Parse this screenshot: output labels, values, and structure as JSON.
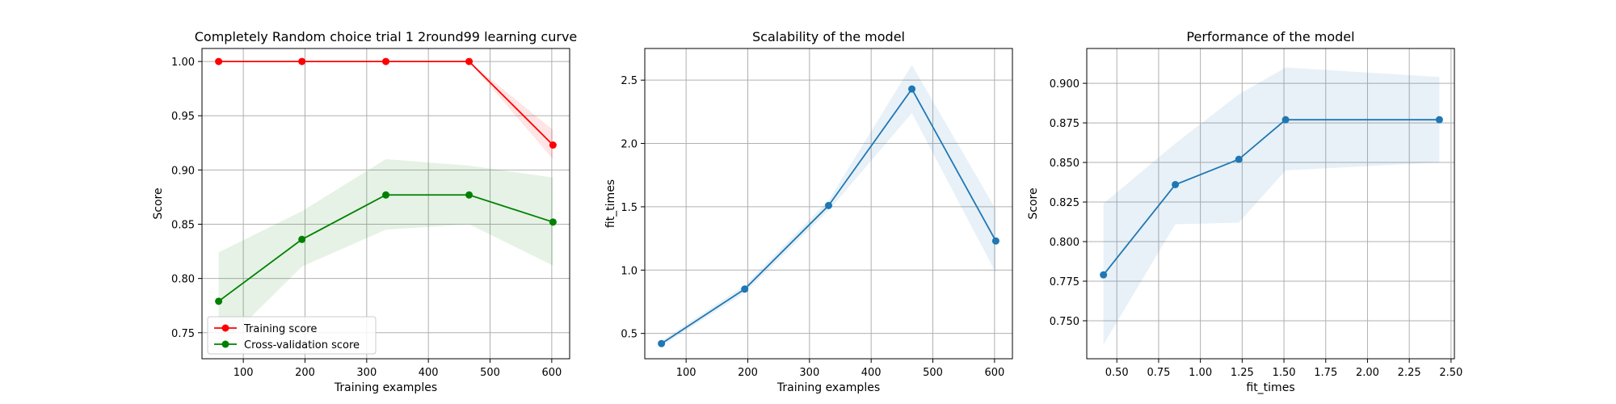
{
  "chart_data": [
    {
      "type": "line",
      "title": "Completely Random choice trial 1 2round99 learning curve",
      "xlabel": "Training examples",
      "ylabel": "Score",
      "xlim": [
        33,
        629
      ],
      "ylim": [
        0.726,
        1.012
      ],
      "xticks": [
        100,
        200,
        300,
        400,
        500,
        600
      ],
      "xtick_labels": [
        "100",
        "200",
        "300",
        "400",
        "500",
        "600"
      ],
      "yticks": [
        0.75,
        0.8,
        0.85,
        0.9,
        0.95,
        1.0
      ],
      "ytick_labels": [
        "0.75",
        "0.80",
        "0.85",
        "0.90",
        "0.95",
        "1.00"
      ],
      "grid": true,
      "legend_position": "lower-left",
      "x": [
        60,
        195,
        331,
        466,
        602
      ],
      "series": [
        {
          "name": "Training score",
          "color": "#ff0000",
          "band_color": "#ff0000",
          "values": [
            1.0,
            1.0,
            1.0,
            1.0,
            0.923
          ],
          "lower": [
            1.0,
            1.0,
            1.0,
            1.0,
            0.91
          ],
          "upper": [
            1.0,
            1.0,
            1.0,
            1.0,
            0.937
          ]
        },
        {
          "name": "Cross-validation score",
          "color": "#008000",
          "band_color": "#008000",
          "values": [
            0.779,
            0.836,
            0.877,
            0.877,
            0.852
          ],
          "lower": [
            0.735,
            0.811,
            0.845,
            0.85,
            0.812
          ],
          "upper": [
            0.824,
            0.862,
            0.91,
            0.904,
            0.893
          ]
        }
      ]
    },
    {
      "type": "line",
      "title": "Scalability of the model",
      "xlabel": "Training examples",
      "ylabel": "fit_times",
      "xlim": [
        33,
        629
      ],
      "ylim": [
        0.3,
        2.75
      ],
      "xticks": [
        100,
        200,
        300,
        400,
        500,
        600
      ],
      "xtick_labels": [
        "100",
        "200",
        "300",
        "400",
        "500",
        "600"
      ],
      "yticks": [
        0.5,
        1.0,
        1.5,
        2.0,
        2.5
      ],
      "ytick_labels": [
        "0.5",
        "1.0",
        "1.5",
        "2.0",
        "2.5"
      ],
      "grid": true,
      "x": [
        60,
        195,
        331,
        466,
        602
      ],
      "series": [
        {
          "color": "#1f77b4",
          "band_color": "#1f77b4",
          "values": [
            0.42,
            0.85,
            1.51,
            2.43,
            1.23
          ],
          "lower": [
            0.4,
            0.82,
            1.47,
            2.24,
            0.98
          ],
          "upper": [
            0.44,
            0.88,
            1.55,
            2.62,
            1.48
          ]
        }
      ]
    },
    {
      "type": "line",
      "title": "Performance of the model",
      "xlabel": "fit_times",
      "ylabel": "Score",
      "xlim": [
        0.32,
        2.52
      ],
      "ylim": [
        0.726,
        0.922
      ],
      "xticks": [
        0.5,
        0.75,
        1.0,
        1.25,
        1.5,
        1.75,
        2.0,
        2.25,
        2.5
      ],
      "xtick_labels": [
        "0.50",
        "0.75",
        "1.00",
        "1.25",
        "1.50",
        "1.75",
        "2.00",
        "2.25",
        "2.50"
      ],
      "yticks": [
        0.75,
        0.775,
        0.8,
        0.825,
        0.85,
        0.875,
        0.9
      ],
      "ytick_labels": [
        "0.750",
        "0.775",
        "0.800",
        "0.825",
        "0.850",
        "0.875",
        "0.900"
      ],
      "grid": true,
      "series": [
        {
          "color": "#1f77b4",
          "band_color": "#1f77b4",
          "x": [
            0.42,
            0.85,
            1.23,
            1.51,
            2.43
          ],
          "values": [
            0.779,
            0.836,
            0.852,
            0.877,
            0.877
          ],
          "band_x": [
            0.42,
            0.85,
            1.23,
            1.51,
            2.43
          ],
          "lower": [
            0.735,
            0.811,
            0.812,
            0.845,
            0.85
          ],
          "upper": [
            0.824,
            0.862,
            0.893,
            0.91,
            0.904
          ]
        }
      ]
    }
  ]
}
